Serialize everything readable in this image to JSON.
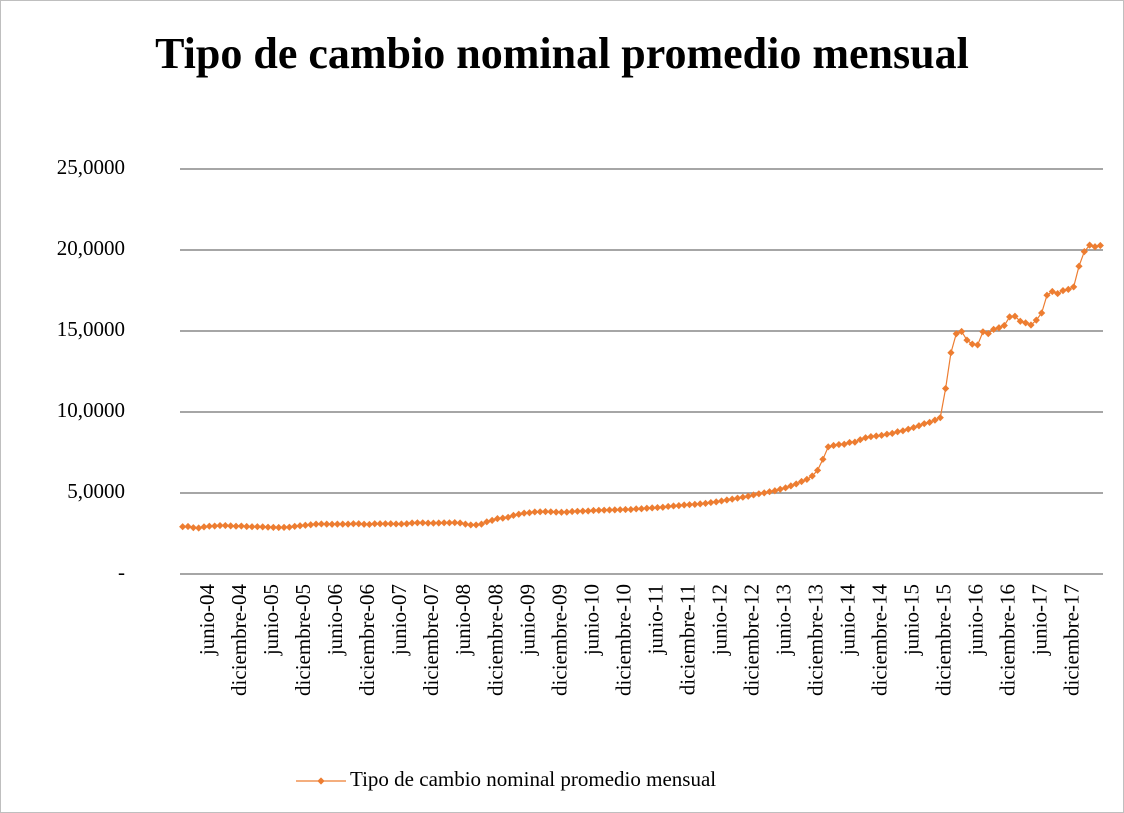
{
  "chart_data": {
    "type": "line",
    "title": "Tipo de cambio nominal promedio mensual",
    "categories": [
      null,
      null,
      null,
      null,
      null,
      "junio-04",
      null,
      null,
      null,
      null,
      null,
      "diciembre-04",
      null,
      null,
      null,
      null,
      null,
      "junio-05",
      null,
      null,
      null,
      null,
      null,
      "diciembre-05",
      null,
      null,
      null,
      null,
      null,
      "junio-06",
      null,
      null,
      null,
      null,
      null,
      "diciembre-06",
      null,
      null,
      null,
      null,
      null,
      "junio-07",
      null,
      null,
      null,
      null,
      null,
      "diciembre-07",
      null,
      null,
      null,
      null,
      null,
      "junio-08",
      null,
      null,
      null,
      null,
      null,
      "diciembre-08",
      null,
      null,
      null,
      null,
      null,
      "junio-09",
      null,
      null,
      null,
      null,
      null,
      "diciembre-09",
      null,
      null,
      null,
      null,
      null,
      "junio-10",
      null,
      null,
      null,
      null,
      null,
      "diciembre-10",
      null,
      null,
      null,
      null,
      null,
      "junio-11",
      null,
      null,
      null,
      null,
      null,
      "diciembre-11",
      null,
      null,
      null,
      null,
      null,
      "junio-12",
      null,
      null,
      null,
      null,
      null,
      "diciembre-12",
      null,
      null,
      null,
      null,
      null,
      "junio-13",
      null,
      null,
      null,
      null,
      null,
      "diciembre-13",
      null,
      null,
      null,
      null,
      null,
      "junio-14",
      null,
      null,
      null,
      null,
      null,
      "diciembre-14",
      null,
      null,
      null,
      null,
      null,
      "junio-15",
      null,
      null,
      null,
      null,
      null,
      "diciembre-15",
      null,
      null,
      null,
      null,
      null,
      "junio-16",
      null,
      null,
      null,
      null,
      null,
      "diciembre-16",
      null,
      null,
      null,
      null,
      null,
      "junio-17",
      null,
      null,
      null,
      null,
      null,
      "diciembre-17",
      null,
      null,
      null,
      null,
      null
    ],
    "series": [
      {
        "name": "Tipo de cambio nominal promedio mensual",
        "color": "#ed7d31",
        "values": [
          2.92,
          2.93,
          2.86,
          2.84,
          2.91,
          2.95,
          2.96,
          2.99,
          2.99,
          2.97,
          2.95,
          2.96,
          2.93,
          2.92,
          2.92,
          2.91,
          2.89,
          2.88,
          2.87,
          2.88,
          2.89,
          2.94,
          2.98,
          3.01,
          3.04,
          3.08,
          3.09,
          3.08,
          3.07,
          3.08,
          3.08,
          3.08,
          3.1,
          3.1,
          3.07,
          3.06,
          3.1,
          3.1,
          3.1,
          3.1,
          3.09,
          3.09,
          3.1,
          3.15,
          3.16,
          3.16,
          3.14,
          3.14,
          3.15,
          3.16,
          3.16,
          3.17,
          3.15,
          3.08,
          3.03,
          3.03,
          3.08,
          3.22,
          3.31,
          3.42,
          3.45,
          3.5,
          3.62,
          3.69,
          3.76,
          3.78,
          3.83,
          3.84,
          3.85,
          3.84,
          3.82,
          3.81,
          3.82,
          3.86,
          3.87,
          3.88,
          3.89,
          3.92,
          3.93,
          3.94,
          3.95,
          3.96,
          3.97,
          3.98,
          3.98,
          4.02,
          4.03,
          4.06,
          4.08,
          4.1,
          4.12,
          4.17,
          4.2,
          4.22,
          4.26,
          4.28,
          4.3,
          4.33,
          4.36,
          4.41,
          4.45,
          4.51,
          4.57,
          4.62,
          4.68,
          4.74,
          4.8,
          4.88,
          4.95,
          5.01,
          5.08,
          5.14,
          5.23,
          5.32,
          5.44,
          5.56,
          5.71,
          5.84,
          6.05,
          6.4,
          7.08,
          7.85,
          7.93,
          7.99,
          8.01,
          8.12,
          8.14,
          8.29,
          8.41,
          8.48,
          8.52,
          8.56,
          8.63,
          8.68,
          8.78,
          8.84,
          8.94,
          9.04,
          9.15,
          9.28,
          9.36,
          9.5,
          9.65,
          11.45,
          13.66,
          14.83,
          14.97,
          14.44,
          14.19,
          14.14,
          14.95,
          14.84,
          15.1,
          15.2,
          15.34,
          15.87,
          15.91,
          15.6,
          15.5,
          15.37,
          15.67,
          16.11,
          17.21,
          17.44,
          17.31,
          17.49,
          17.57,
          17.72,
          19.0,
          19.9,
          20.3,
          20.2,
          20.28
        ]
      }
    ],
    "ylim": [
      0,
      25
    ],
    "yticks": [
      {
        "value": 0,
        "label": "-"
      },
      {
        "value": 5,
        "label": "5,0000"
      },
      {
        "value": 10,
        "label": "10,0000"
      },
      {
        "value": 15,
        "label": "15,0000"
      },
      {
        "value": 20,
        "label": "20,0000"
      },
      {
        "value": 25,
        "label": "25,0000"
      }
    ],
    "grid": true,
    "legend": "bottom"
  }
}
